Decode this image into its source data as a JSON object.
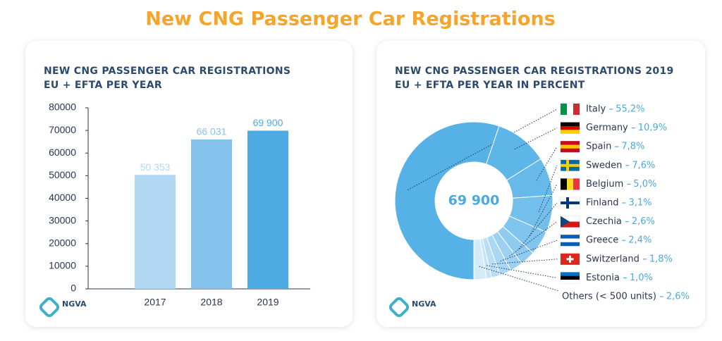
{
  "title": "New CNG Passenger Car Registrations",
  "logo": "NGVA",
  "chart_data": [
    {
      "type": "bar",
      "title_lines": [
        "NEW CNG PASSENGER CAR REGISTRATIONS",
        "EU + EFTA PER YEAR"
      ],
      "categories": [
        "2017",
        "2018",
        "2019"
      ],
      "values": [
        50353,
        66031,
        69900
      ],
      "value_labels": [
        "50 353",
        "66 031",
        "69 900"
      ],
      "colors": [
        "#b2d7f3",
        "#84c2ec",
        "#4eaae2"
      ],
      "ylim": [
        0,
        80000
      ],
      "yticks": [
        0,
        10000,
        20000,
        30000,
        40000,
        50000,
        60000,
        70000,
        80000
      ]
    },
    {
      "type": "pie",
      "donut": true,
      "title_lines": [
        "NEW CNG PASSENGER CAR REGISTRATIONS 2019",
        "EU + EFTA PER YEAR IN PERCENT"
      ],
      "center_label": "69 900",
      "categories": [
        "Italy",
        "Germany",
        "Spain",
        "Sweden",
        "Belgium",
        "Finland",
        "Czechia",
        "Greece",
        "Switzerland",
        "Estonia",
        "Others (< 500 units)"
      ],
      "values": [
        55.2,
        10.9,
        7.8,
        7.6,
        5.0,
        3.1,
        2.6,
        2.4,
        1.8,
        1.0,
        2.6
      ],
      "value_labels": [
        "55,2%",
        "10,9%",
        "7,8%",
        "7,6%",
        "5,0%",
        "3,1%",
        "2,6%",
        "2,4%",
        "1,8%",
        "1,0%",
        "2,6%"
      ],
      "colors": [
        "#55b1e6",
        "#5db5e8",
        "#66b9e9",
        "#72bfeb",
        "#80c5ed",
        "#8ecbef",
        "#9cd1f1",
        "#aad7f3",
        "#b8ddf5",
        "#c6e3f7",
        "#d6ebf9"
      ]
    }
  ]
}
